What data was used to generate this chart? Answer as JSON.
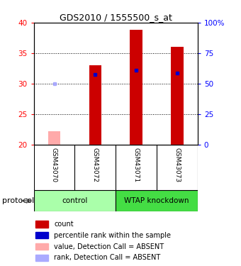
{
  "title": "GDS2010 / 1555500_s_at",
  "samples": [
    "GSM43070",
    "GSM43072",
    "GSM43071",
    "GSM43073"
  ],
  "bar_values": [
    22.3,
    33.0,
    38.8,
    36.1
  ],
  "bar_colors": [
    "#ffaaaa",
    "#cc0000",
    "#cc0000",
    "#cc0000"
  ],
  "rank_values": [
    30.0,
    31.5,
    32.2,
    31.8
  ],
  "rank_colors": [
    "#aaaaff",
    "#0000cc",
    "#0000cc",
    "#0000cc"
  ],
  "ylim_left": [
    20,
    40
  ],
  "ylim_right": [
    0,
    100
  ],
  "yticks_left": [
    20,
    25,
    30,
    35,
    40
  ],
  "yticks_right": [
    0,
    25,
    50,
    75,
    100
  ],
  "ytick_labels_right": [
    "0",
    "25",
    "50",
    "75",
    "100%"
  ],
  "groups": [
    {
      "label": "control",
      "samples": [
        0,
        1
      ],
      "color": "#aaffaa"
    },
    {
      "label": "WTAP knockdown",
      "samples": [
        2,
        3
      ],
      "color": "#44dd44"
    }
  ],
  "protocol_label": "protocol",
  "legend_items": [
    {
      "color": "#cc0000",
      "label": "count"
    },
    {
      "color": "#0000cc",
      "label": "percentile rank within the sample"
    },
    {
      "color": "#ffaaaa",
      "label": "value, Detection Call = ABSENT"
    },
    {
      "color": "#aaaaff",
      "label": "rank, Detection Call = ABSENT"
    }
  ]
}
